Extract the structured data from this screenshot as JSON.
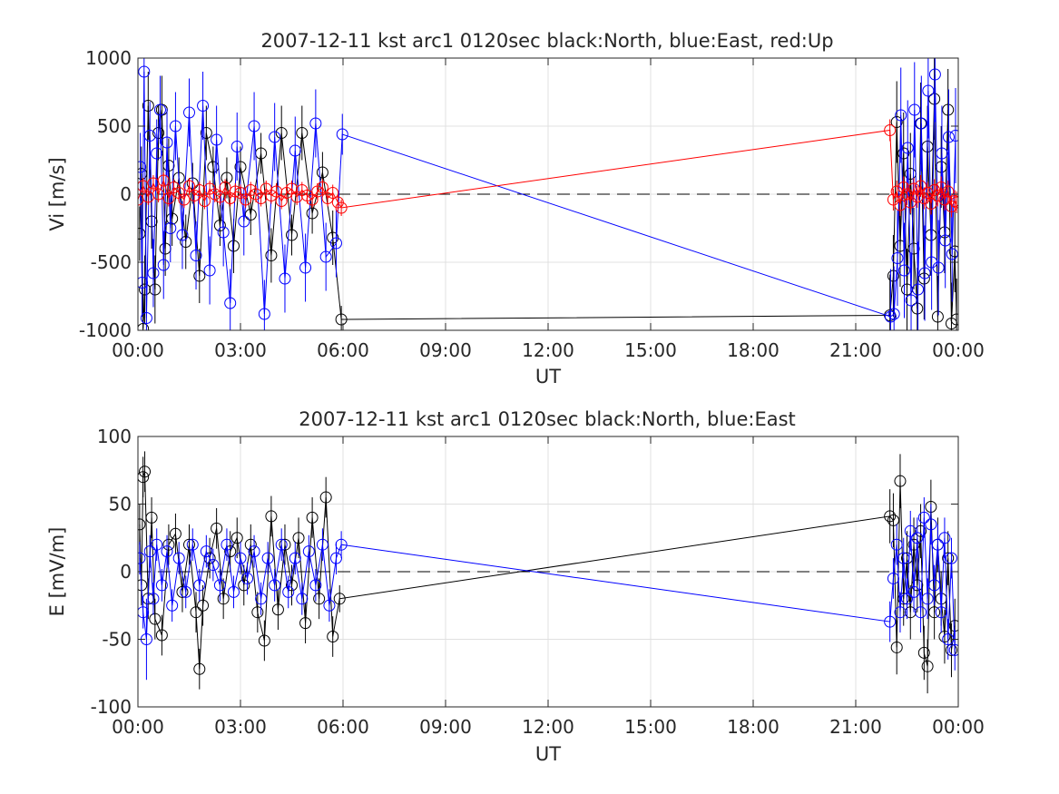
{
  "figure": {
    "background": "#ffffff",
    "colors": {
      "north": "#000000",
      "east": "#0000ff",
      "up": "#ff0000",
      "grid": "#e0e0e0",
      "axis": "#262626",
      "zero_line": "#000000"
    }
  },
  "chart_data": [
    {
      "type": "scatter",
      "title": "2007-12-11 kst arc1 0120sec black:North, blue:East, red:Up",
      "xlabel": "UT",
      "ylabel": "Vi [m/s]",
      "xlim": [
        0,
        24
      ],
      "ylim": [
        -1000,
        1000
      ],
      "xtick_labels": [
        "00:00",
        "03:00",
        "06:00",
        "09:00",
        "12:00",
        "15:00",
        "18:00",
        "21:00",
        "00:00"
      ],
      "ytick_labels": [
        "-1000",
        "-500",
        "0",
        "500",
        "1000"
      ],
      "grid": true,
      "zero_line": "dashed",
      "series": [
        {
          "name": "North",
          "color": "#000000",
          "x": [
            0.05,
            0.1,
            0.15,
            0.2,
            0.3,
            0.4,
            0.5,
            0.6,
            0.7,
            0.8,
            0.9,
            1.0,
            1.2,
            1.4,
            1.6,
            1.8,
            2.0,
            2.2,
            2.4,
            2.6,
            2.8,
            3.0,
            3.3,
            3.6,
            3.9,
            4.2,
            4.5,
            4.8,
            5.1,
            5.4,
            5.7,
            5.95,
            22.0,
            22.1,
            22.2,
            22.3,
            22.4,
            22.5,
            22.6,
            22.7,
            22.8,
            22.9,
            23.0,
            23.1,
            23.2,
            23.3,
            23.4,
            23.5,
            23.6,
            23.7,
            23.8,
            23.9,
            23.95
          ],
          "y": [
            -290,
            150,
            -990,
            -700,
            650,
            -200,
            -700,
            450,
            620,
            -400,
            210,
            -180,
            120,
            -350,
            80,
            -600,
            450,
            200,
            -230,
            120,
            -380,
            200,
            -150,
            300,
            -450,
            450,
            -300,
            450,
            -140,
            160,
            -320,
            -920,
            -890,
            -600,
            530,
            -380,
            300,
            -700,
            150,
            -400,
            -840,
            520,
            -620,
            350,
            -300,
            700,
            -900,
            200,
            -280,
            620,
            -950,
            -420,
            -920
          ],
          "err": [
            200,
            200,
            250,
            250,
            250,
            200,
            250,
            200,
            250,
            200,
            200,
            200,
            150,
            200,
            150,
            200,
            200,
            150,
            150,
            150,
            200,
            150,
            150,
            150,
            200,
            200,
            150,
            200,
            150,
            150,
            200,
            100,
            300,
            300,
            300,
            300,
            300,
            300,
            300,
            300,
            300,
            300,
            300,
            300,
            300,
            300,
            300,
            300,
            300,
            300,
            300,
            300,
            300
          ]
        },
        {
          "name": "East",
          "color": "#0000ff",
          "x": [
            0.07,
            0.12,
            0.18,
            0.25,
            0.35,
            0.45,
            0.55,
            0.65,
            0.75,
            0.85,
            0.95,
            1.1,
            1.3,
            1.5,
            1.7,
            1.9,
            2.1,
            2.3,
            2.5,
            2.7,
            2.9,
            3.1,
            3.4,
            3.7,
            4.0,
            4.3,
            4.6,
            4.9,
            5.2,
            5.5,
            5.8,
            5.98,
            22.02,
            22.12,
            22.22,
            22.32,
            22.42,
            22.52,
            22.62,
            22.72,
            22.82,
            22.92,
            23.02,
            23.12,
            23.22,
            23.32,
            23.42,
            23.52,
            23.62,
            23.72,
            23.82,
            23.92
          ],
          "y": [
            200,
            -650,
            900,
            -910,
            430,
            -580,
            300,
            620,
            -520,
            380,
            -250,
            500,
            -300,
            600,
            -450,
            650,
            -560,
            400,
            -280,
            -800,
            350,
            -200,
            500,
            -880,
            420,
            -620,
            320,
            -540,
            520,
            -460,
            -360,
            440,
            -900,
            -880,
            -470,
            580,
            -560,
            340,
            -780,
            620,
            -700,
            520,
            -580,
            760,
            -500,
            880,
            -540,
            300,
            -340,
            420,
            -440,
            430
          ],
          "err": [
            250,
            250,
            250,
            300,
            250,
            250,
            250,
            250,
            250,
            250,
            250,
            250,
            250,
            250,
            250,
            250,
            250,
            250,
            250,
            250,
            250,
            250,
            250,
            250,
            250,
            250,
            250,
            250,
            250,
            250,
            250,
            150,
            350,
            350,
            350,
            350,
            350,
            350,
            350,
            350,
            350,
            350,
            350,
            350,
            350,
            350,
            350,
            350,
            350,
            350,
            350,
            350
          ]
        },
        {
          "name": "Up",
          "color": "#ff0000",
          "x": [
            0.0,
            0.15,
            0.3,
            0.45,
            0.6,
            0.75,
            0.9,
            1.05,
            1.2,
            1.35,
            1.5,
            1.65,
            1.8,
            1.95,
            2.1,
            2.25,
            2.4,
            2.55,
            2.7,
            2.85,
            3.0,
            3.15,
            3.3,
            3.45,
            3.6,
            3.75,
            3.9,
            4.05,
            4.2,
            4.35,
            4.5,
            4.65,
            4.8,
            4.95,
            5.1,
            5.25,
            5.4,
            5.55,
            5.7,
            5.85,
            5.95,
            22.0,
            22.1,
            22.2,
            22.3,
            22.4,
            22.5,
            22.6,
            22.7,
            22.8,
            22.9,
            23.0,
            23.1,
            23.2,
            23.3,
            23.4,
            23.5,
            23.6,
            23.7,
            23.8,
            23.9,
            23.95
          ],
          "y": [
            -40,
            60,
            -20,
            80,
            0,
            100,
            -30,
            50,
            10,
            -40,
            60,
            -10,
            30,
            -50,
            40,
            0,
            -20,
            50,
            -30,
            20,
            10,
            -40,
            30,
            0,
            -30,
            40,
            -10,
            20,
            -50,
            10,
            40,
            -20,
            30,
            -10,
            -40,
            20,
            50,
            -30,
            10,
            -60,
            -100,
            470,
            -40,
            20,
            -80,
            50,
            0,
            -60,
            40,
            -20,
            60,
            -30,
            10,
            -70,
            30,
            -10,
            50,
            -40,
            20,
            -90,
            -50,
            -60
          ],
          "err": [
            60,
            60,
            60,
            60,
            60,
            60,
            60,
            60,
            60,
            60,
            60,
            60,
            60,
            60,
            60,
            60,
            60,
            60,
            60,
            60,
            60,
            60,
            60,
            60,
            60,
            60,
            60,
            60,
            60,
            60,
            60,
            60,
            60,
            60,
            60,
            60,
            60,
            60,
            60,
            60,
            60,
            80,
            80,
            80,
            80,
            80,
            80,
            80,
            80,
            80,
            80,
            80,
            80,
            80,
            80,
            80,
            80,
            80,
            80,
            80,
            80,
            80
          ]
        }
      ]
    },
    {
      "type": "scatter",
      "title": "2007-12-11 kst arc1 0120sec black:North, blue:East",
      "xlabel": "UT",
      "ylabel": "E [mV/m]",
      "xlim": [
        0,
        24
      ],
      "ylim": [
        -100,
        100
      ],
      "xtick_labels": [
        "00:00",
        "03:00",
        "06:00",
        "09:00",
        "12:00",
        "15:00",
        "18:00",
        "21:00",
        "00:00"
      ],
      "ytick_labels": [
        "-100",
        "-50",
        "0",
        "50",
        "100"
      ],
      "grid": true,
      "zero_line": "dashed",
      "series": [
        {
          "name": "North",
          "color": "#000000",
          "x": [
            0.05,
            0.1,
            0.15,
            0.2,
            0.3,
            0.4,
            0.5,
            0.7,
            0.9,
            1.1,
            1.3,
            1.5,
            1.7,
            1.8,
            1.9,
            2.1,
            2.3,
            2.5,
            2.7,
            2.9,
            3.1,
            3.3,
            3.5,
            3.7,
            3.9,
            4.1,
            4.3,
            4.5,
            4.7,
            4.9,
            5.1,
            5.3,
            5.5,
            5.7,
            5.9,
            22.0,
            22.1,
            22.2,
            22.3,
            22.4,
            22.5,
            22.6,
            22.7,
            22.8,
            22.9,
            23.0,
            23.1,
            23.2,
            23.3,
            23.4,
            23.5,
            23.6,
            23.7,
            23.8,
            23.9
          ],
          "y": [
            35,
            -10,
            70,
            74,
            -20,
            40,
            -35,
            -47,
            20,
            28,
            -15,
            20,
            -30,
            -72,
            -25,
            10,
            32,
            -20,
            15,
            25,
            -10,
            20,
            -30,
            -51,
            41,
            -28,
            20,
            -10,
            25,
            -38,
            40,
            -20,
            55,
            -48,
            -20,
            41,
            38,
            -56,
            67,
            -20,
            10,
            -30,
            20,
            -10,
            30,
            -60,
            -70,
            48,
            -30,
            20,
            -20,
            -48,
            10,
            -58,
            -40
          ],
          "err": [
            15,
            15,
            15,
            15,
            15,
            15,
            15,
            15,
            15,
            15,
            15,
            15,
            15,
            15,
            15,
            15,
            15,
            15,
            15,
            15,
            15,
            15,
            15,
            15,
            15,
            15,
            15,
            15,
            15,
            15,
            15,
            15,
            15,
            15,
            10,
            20,
            20,
            20,
            20,
            20,
            20,
            20,
            20,
            20,
            20,
            20,
            20,
            20,
            20,
            20,
            20,
            20,
            20,
            20,
            20
          ]
        },
        {
          "name": "East",
          "color": "#0000ff",
          "x": [
            0.05,
            0.15,
            0.25,
            0.35,
            0.45,
            0.55,
            0.7,
            0.85,
            1.0,
            1.2,
            1.4,
            1.6,
            1.8,
            2.0,
            2.2,
            2.4,
            2.6,
            2.8,
            3.0,
            3.2,
            3.4,
            3.6,
            3.8,
            4.0,
            4.2,
            4.4,
            4.6,
            4.8,
            5.0,
            5.2,
            5.4,
            5.6,
            5.8,
            5.95,
            22.0,
            22.1,
            22.2,
            22.3,
            22.4,
            22.5,
            22.6,
            22.7,
            22.8,
            22.9,
            23.0,
            23.1,
            23.2,
            23.3,
            23.4,
            23.5,
            23.6,
            23.7,
            23.8,
            23.9
          ],
          "y": [
            10,
            -30,
            -50,
            15,
            -20,
            20,
            -10,
            15,
            -25,
            10,
            -15,
            20,
            -10,
            15,
            5,
            -10,
            20,
            -15,
            10,
            -5,
            15,
            -20,
            10,
            -10,
            20,
            -15,
            10,
            -20,
            15,
            -10,
            20,
            -25,
            10,
            20,
            -37,
            -5,
            20,
            -30,
            10,
            -20,
            30,
            -15,
            25,
            -30,
            40,
            -20,
            35,
            -10,
            20,
            -30,
            25,
            -50,
            10,
            -58
          ],
          "err": [
            12,
            12,
            30,
            12,
            12,
            12,
            12,
            12,
            12,
            12,
            12,
            12,
            12,
            12,
            12,
            12,
            12,
            12,
            12,
            12,
            12,
            12,
            12,
            12,
            12,
            12,
            12,
            12,
            12,
            12,
            12,
            12,
            12,
            10,
            15,
            15,
            15,
            15,
            15,
            15,
            15,
            15,
            15,
            15,
            15,
            15,
            15,
            15,
            15,
            15,
            15,
            15,
            15,
            15
          ]
        }
      ]
    }
  ]
}
